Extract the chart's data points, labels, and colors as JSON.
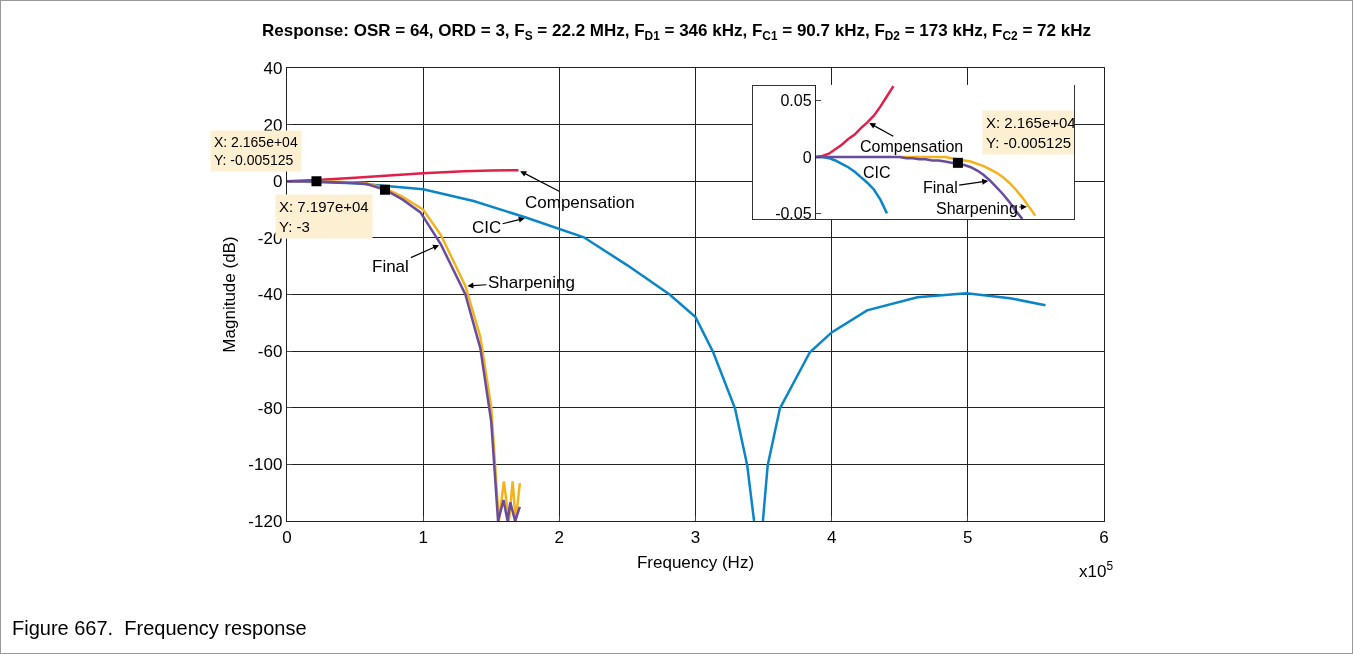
{
  "chart_data": [
    {
      "type": "line",
      "title": "Response: OSR = 64, ORD = 3, F$_{S}$ = 22.2 MHz, F$_{D1}$ = 346 kHz, F$_{C1}$ = 90.7 kHz, F$_{D2}$ = 173 kHz, F$_{C2}$ = 72 kHz",
      "xlabel": "Frequency (Hz)",
      "ylabel": "Magnitude (dB)",
      "annotations": [
        "x10$^{5}$",
        "Figure 667.  Frequency response",
        {
          "text": "X: 2.165e+04\nY: -0.005125",
          "x": 0.2165,
          "y": -0.005125
        },
        {
          "text": "X: 7.197e+04\nY: -3",
          "x": 0.7197,
          "y": -3
        }
      ],
      "xlim": [
        0,
        6
      ],
      "ylim": [
        -120,
        40
      ],
      "xticks": [
        0,
        1,
        2,
        3,
        4,
        5,
        6
      ],
      "yticks": [
        -120,
        -100,
        -80,
        -60,
        -40,
        -20,
        0,
        20,
        40
      ],
      "grid": true,
      "series": [
        {
          "name": "CIC",
          "color": "#0a86c8",
          "x": [
            0,
            0.5,
            1,
            1.37,
            1.76,
            2.18,
            2.5,
            2.81,
            3,
            3.13,
            3.29,
            3.38,
            3.43,
            3.46,
            3.495,
            3.53,
            3.62,
            3.84,
            4,
            4.26,
            4.63,
            4.99,
            5.31,
            5.57
          ],
          "values": [
            0,
            -0.7,
            -2.8,
            -7,
            -12.9,
            -19.8,
            -29.7,
            -40,
            -48,
            -60.4,
            -80.2,
            -100.4,
            -120,
            null,
            -120,
            -100.4,
            -80.2,
            -60.4,
            -53.4,
            -45.6,
            -41,
            -39.6,
            -41.3,
            -43.8
          ]
        },
        {
          "name": "Compensation",
          "color": "#e0204a",
          "x": [
            0,
            0.25,
            0.5,
            0.75,
            1,
            1.3,
            1.5,
            1.7
          ],
          "values": [
            0,
            0.5,
            1.2,
            2,
            2.8,
            3.5,
            3.8,
            3.9
          ]
        },
        {
          "name": "Sharpening",
          "color": "#f5b21b",
          "x": [
            0,
            0.3,
            0.58,
            0.72,
            0.85,
            1,
            1.13,
            1.22,
            1.31,
            1.42,
            1.5,
            1.556,
            1.593,
            1.63,
            1.657,
            1.68,
            1.71
          ],
          "values": [
            0,
            0,
            -0.6,
            -2.5,
            -5.5,
            -10,
            -19,
            -28,
            -37,
            -55,
            -80,
            -120,
            -106,
            -120,
            -106,
            -120,
            -106.6
          ]
        },
        {
          "name": "Final",
          "color": "#6a4c9c",
          "x": [
            0,
            0.2165,
            0.58,
            0.7197,
            0.85,
            0.98,
            1.13,
            1.31,
            1.42,
            1.5,
            1.55,
            1.59,
            1.62,
            1.64,
            1.675,
            1.71
          ],
          "values": [
            0,
            -0.005125,
            -0.9,
            -3,
            -6.5,
            -11,
            -22.3,
            -40,
            -59,
            -85,
            -120,
            -112.6,
            -120,
            -113.4,
            -120,
            -115
          ]
        },
        {
          "type": "scatter",
          "marker": "square",
          "color": "#000000",
          "x": [
            0.2165,
            0.7197
          ],
          "values": [
            -0.005125,
            -3
          ]
        }
      ]
    },
    {
      "type": "line",
      "tick_labels": "y",
      "ylim": [
        -0.055,
        0.064
      ],
      "yticks": [
        -0.05,
        0,
        0.05
      ],
      "categories": [
        null,
        null,
        null,
        null,
        null,
        null,
        null,
        null,
        null,
        null,
        null,
        null,
        null,
        null,
        null,
        null,
        null,
        null,
        null,
        null,
        null,
        null,
        null,
        null,
        null,
        null,
        null,
        null,
        null,
        null,
        null,
        null,
        null,
        null,
        null,
        null,
        null,
        null,
        null,
        null,
        null
      ],
      "annotations": [
        "X: 2.165e+04\nY: -0.005125"
      ],
      "series": [
        {
          "name": "CIC",
          "color": "#0a86c8",
          "values": [
            0,
            0,
            -0.001,
            -0.003,
            -0.006,
            -0.009,
            -0.013,
            -0.018,
            -0.023,
            -0.029,
            -0.038,
            -0.05,
            null,
            null,
            null,
            null,
            null,
            null,
            null,
            null,
            null,
            null,
            null,
            null,
            null,
            null,
            null,
            null,
            null,
            null,
            null,
            null,
            null,
            null,
            null,
            null,
            null,
            null,
            null,
            null,
            null
          ]
        },
        {
          "name": "Compensation",
          "color": "#e0204a",
          "values": [
            0,
            0.001,
            0.003,
            0.007,
            0.011,
            0.016,
            0.02,
            0.026,
            0.031,
            0.037,
            0.045,
            0.054,
            0.063,
            null,
            null,
            null,
            null,
            null,
            null,
            null,
            null,
            null,
            null,
            null,
            null,
            null,
            null,
            null,
            null,
            null,
            null,
            null,
            null,
            null,
            null,
            null,
            null,
            null,
            null,
            null,
            null
          ]
        },
        {
          "name": "Sharpening",
          "color": "#f5b21b",
          "values": [
            null,
            null,
            null,
            null,
            null,
            null,
            null,
            null,
            null,
            null,
            null,
            null,
            null,
            0,
            0,
            0,
            0,
            0,
            0,
            0,
            0,
            -0.001,
            -0.002,
            -0.003,
            -0.004,
            -0.006,
            -0.008,
            -0.011,
            -0.014,
            -0.018,
            -0.023,
            -0.029,
            -0.036,
            -0.044,
            -0.052,
            null,
            null,
            null,
            null,
            null,
            null
          ]
        },
        {
          "name": "Final",
          "color": "#6a4c9c",
          "values": [
            0,
            0,
            0,
            0,
            0,
            0,
            0,
            0,
            0,
            0,
            0,
            0,
            0,
            0,
            -0.001,
            -0.001,
            -0.002,
            -0.002,
            -0.003,
            -0.003,
            -0.004,
            -0.005,
            -0.006,
            -0.007,
            -0.009,
            -0.012,
            -0.016,
            -0.021,
            -0.027,
            -0.033,
            -0.04,
            -0.048,
            -0.055,
            null,
            null,
            null,
            null,
            null,
            null,
            null,
            null
          ]
        },
        {
          "type": "scatter",
          "marker": "square",
          "color": "#000000",
          "values": [
            null,
            null,
            null,
            null,
            null,
            null,
            null,
            null,
            null,
            null,
            null,
            null,
            null,
            null,
            null,
            null,
            null,
            null,
            null,
            null,
            null,
            null,
            -0.005125,
            null,
            null,
            null,
            null,
            null,
            null,
            null,
            null,
            null,
            null,
            null,
            null,
            null,
            null,
            null,
            null,
            null,
            null
          ]
        }
      ]
    }
  ]
}
